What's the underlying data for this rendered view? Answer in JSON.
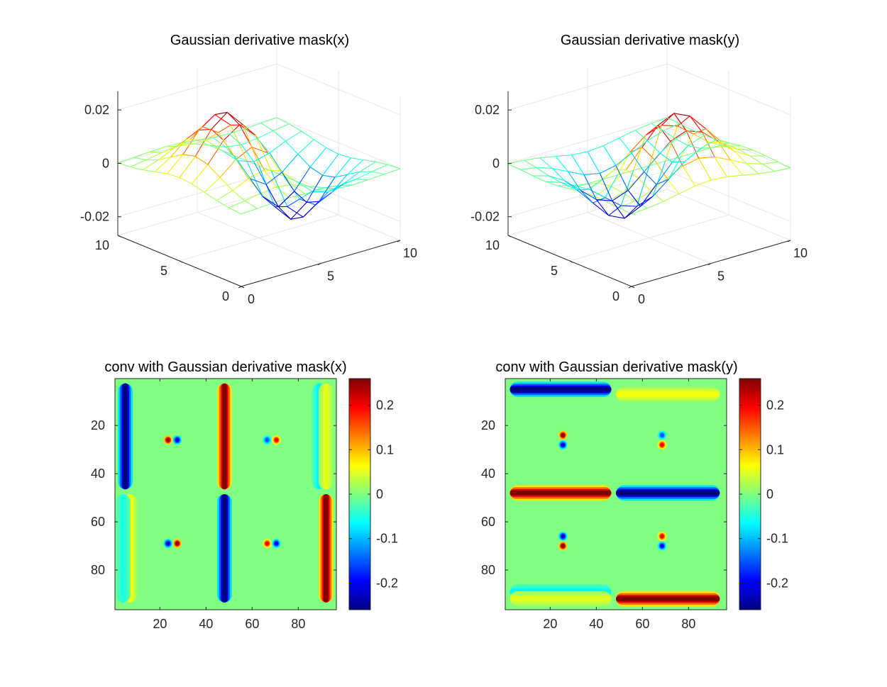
{
  "colors": {
    "background": "#ffffff",
    "axis": "#262626",
    "grid": "#e6e6e6",
    "colormap": "jet"
  },
  "chart_data": [
    {
      "type": "surface",
      "title": "Gaussian derivative mask(x)",
      "derivative": "x",
      "grid_size": 11,
      "x_ticks": [
        "0",
        "5",
        "10"
      ],
      "y_ticks": [
        "0",
        "5",
        "10"
      ],
      "z_ticks": [
        "-0.02",
        "0",
        "0.02"
      ],
      "zlim": [
        -0.027,
        0.027
      ],
      "x_range": [
        0,
        10
      ],
      "y_range": [
        0,
        10
      ]
    },
    {
      "type": "surface",
      "title": "Gaussian derivative mask(y)",
      "derivative": "y",
      "grid_size": 11,
      "x_ticks": [
        "0",
        "5",
        "10"
      ],
      "y_ticks": [
        "0",
        "5",
        "10"
      ],
      "z_ticks": [
        "-0.02",
        "0",
        "0.02"
      ],
      "zlim": [
        -0.027,
        0.027
      ],
      "x_range": [
        0,
        10
      ],
      "y_range": [
        0,
        10
      ]
    },
    {
      "type": "heatmap",
      "title": "conv with Gaussian derivative mask(x)",
      "x_range": [
        0.5,
        96.5
      ],
      "y_range": [
        0.5,
        96.5
      ],
      "x_ticks": [
        "20",
        "40",
        "60",
        "80"
      ],
      "y_ticks": [
        "20",
        "40",
        "60",
        "80"
      ],
      "clim": [
        -0.26,
        0.26
      ],
      "colorbar_ticks": [
        "-0.2",
        "-0.1",
        "0",
        "0.1",
        "0.2"
      ],
      "strokes": [
        {
          "orient": "v",
          "pos": 5,
          "from": 3,
          "to": 46,
          "value": -0.26
        },
        {
          "orient": "v",
          "pos": 48,
          "from": 3,
          "to": 46,
          "value": 0.26
        },
        {
          "orient": "v",
          "pos": 48,
          "from": 49,
          "to": 93,
          "value": -0.26
        },
        {
          "orient": "v",
          "pos": 92,
          "from": 49,
          "to": 93,
          "value": 0.26
        },
        {
          "orient": "v",
          "pos": 7,
          "from": 49,
          "to": 93,
          "value": 0.06
        },
        {
          "orient": "v",
          "pos": 4,
          "from": 49,
          "to": 93,
          "value": -0.05
        },
        {
          "orient": "v",
          "pos": 89,
          "from": 3,
          "to": 46,
          "value": -0.07
        },
        {
          "orient": "v",
          "pos": 92,
          "from": 3,
          "to": 46,
          "value": 0.05
        }
      ],
      "dots": [
        {
          "x": 23.5,
          "y": 26,
          "value": 0.25
        },
        {
          "x": 27.5,
          "y": 26,
          "value": -0.22
        },
        {
          "x": 66.5,
          "y": 26,
          "value": -0.15
        },
        {
          "x": 70.5,
          "y": 26,
          "value": 0.2
        },
        {
          "x": 23.5,
          "y": 69,
          "value": -0.22
        },
        {
          "x": 27.5,
          "y": 69,
          "value": 0.25
        },
        {
          "x": 66.5,
          "y": 69,
          "value": 0.2
        },
        {
          "x": 70.5,
          "y": 69,
          "value": -0.2
        }
      ]
    },
    {
      "type": "heatmap",
      "title": "conv with Gaussian derivative mask(y)",
      "x_range": [
        0.5,
        96.5
      ],
      "y_range": [
        0.5,
        96.5
      ],
      "x_ticks": [
        "20",
        "40",
        "60",
        "80"
      ],
      "y_ticks": [
        "20",
        "40",
        "60",
        "80"
      ],
      "clim": [
        -0.26,
        0.26
      ],
      "colorbar_ticks": [
        "-0.2",
        "-0.1",
        "0",
        "0.1",
        "0.2"
      ],
      "strokes": [
        {
          "orient": "h",
          "pos": 5,
          "from": 3,
          "to": 46,
          "value": -0.26
        },
        {
          "orient": "h",
          "pos": 7,
          "from": 49,
          "to": 93,
          "value": 0.06
        },
        {
          "orient": "h",
          "pos": 48,
          "from": 3,
          "to": 46,
          "value": 0.26
        },
        {
          "orient": "h",
          "pos": 48,
          "from": 49,
          "to": 93,
          "value": -0.26
        },
        {
          "orient": "h",
          "pos": 89,
          "from": 3,
          "to": 46,
          "value": -0.07
        },
        {
          "orient": "h",
          "pos": 92,
          "from": 3,
          "to": 46,
          "value": 0.05
        },
        {
          "orient": "h",
          "pos": 92,
          "from": 49,
          "to": 93,
          "value": 0.26
        }
      ],
      "dots": [
        {
          "x": 25.5,
          "y": 24,
          "value": 0.25
        },
        {
          "x": 25.5,
          "y": 28,
          "value": -0.22
        },
        {
          "x": 68.5,
          "y": 24,
          "value": -0.15
        },
        {
          "x": 68.5,
          "y": 28,
          "value": 0.2
        },
        {
          "x": 25.5,
          "y": 66,
          "value": -0.22
        },
        {
          "x": 25.5,
          "y": 70,
          "value": 0.25
        },
        {
          "x": 68.5,
          "y": 66,
          "value": 0.2
        },
        {
          "x": 68.5,
          "y": 70,
          "value": -0.2
        }
      ]
    }
  ]
}
